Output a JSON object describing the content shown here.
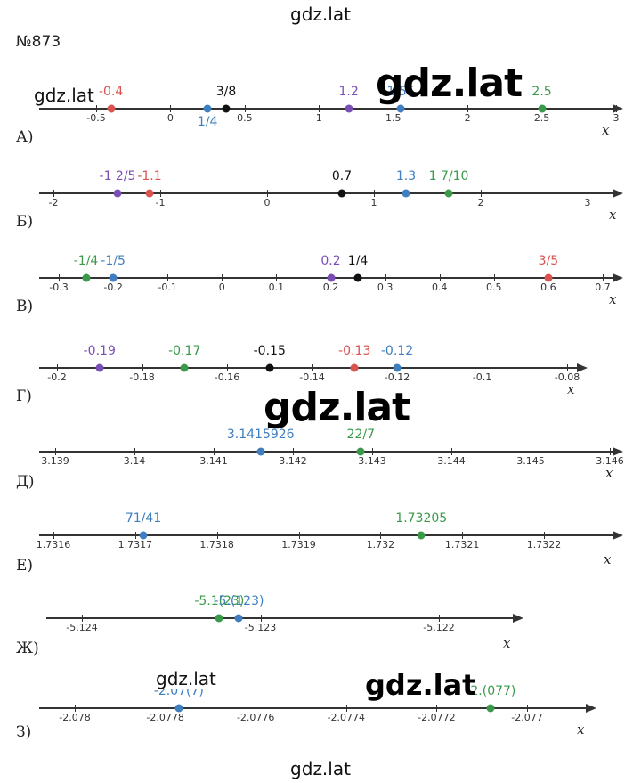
{
  "watermarks": {
    "top": "gdz.lat",
    "bottom": "gdz.lat",
    "big1": "gdz.lat",
    "big2": "gdz.lat",
    "big3": "gdz.lat",
    "small1": "gdz.lat",
    "small2": "gdz.lat"
  },
  "problem_number": "№873",
  "x_axis_symbol": "x",
  "colors": {
    "red": "#d9534f",
    "blue": "#3f7fbf",
    "green": "#3a9a4a",
    "purple": "#7a4fb5",
    "black": "#111111"
  },
  "rows": [
    {
      "label": "А)",
      "min": -0.6,
      "max": 3.0,
      "ticks": [
        "-0.5",
        "0",
        "0.5",
        "1",
        "1.5",
        "2",
        "2.5",
        "3"
      ],
      "tick_values": [
        -0.5,
        0,
        0.5,
        1,
        1.5,
        2,
        2.5,
        3
      ],
      "points": [
        {
          "label": "-0.4",
          "value": -0.4,
          "color": "red",
          "pos": "above"
        },
        {
          "label": "1/4",
          "value": 0.25,
          "color": "blue",
          "pos": "below"
        },
        {
          "label": "3/8",
          "value": 0.375,
          "color": "black",
          "pos": "above"
        },
        {
          "label": "1.2",
          "value": 1.2,
          "color": "purple",
          "pos": "above"
        },
        {
          "label": "1.55",
          "value": 1.55,
          "color": "blue",
          "pos": "above"
        },
        {
          "label": "2.5",
          "value": 2.5,
          "color": "green",
          "pos": "above"
        }
      ]
    },
    {
      "label": "Б)",
      "min": -2.1,
      "max": 3.2,
      "ticks": [
        "-2",
        "-1",
        "0",
        "1",
        "2",
        "3"
      ],
      "tick_values": [
        -2,
        -1,
        0,
        1,
        2,
        3
      ],
      "points": [
        {
          "label": "-1 2/5",
          "value": -1.4,
          "color": "purple",
          "pos": "above"
        },
        {
          "label": "-1.1",
          "value": -1.1,
          "color": "red",
          "pos": "above"
        },
        {
          "label": "0.7",
          "value": 0.7,
          "color": "black",
          "pos": "above"
        },
        {
          "label": "1.3",
          "value": 1.3,
          "color": "blue",
          "pos": "above"
        },
        {
          "label": "1 7/10",
          "value": 1.7,
          "color": "green",
          "pos": "above"
        }
      ]
    },
    {
      "label": "В)",
      "min": -0.33,
      "max": 0.73,
      "ticks": [
        "-0.3",
        "-0.2",
        "-0.1",
        "0",
        "0.1",
        "0.2",
        "0.3",
        "0.4",
        "0.5",
        "0.6",
        "0.7"
      ],
      "tick_values": [
        -0.3,
        -0.2,
        -0.1,
        0,
        0.1,
        0.2,
        0.3,
        0.4,
        0.5,
        0.6,
        0.7
      ],
      "points": [
        {
          "label": "-1/4",
          "value": -0.25,
          "color": "green",
          "pos": "above"
        },
        {
          "label": "-1/5",
          "value": -0.2,
          "color": "blue",
          "pos": "above"
        },
        {
          "label": "0.2",
          "value": 0.2,
          "color": "purple",
          "pos": "above"
        },
        {
          "label": "1/4",
          "value": 0.25,
          "color": "black",
          "pos": "above"
        },
        {
          "label": "3/5",
          "value": 0.6,
          "color": "red",
          "pos": "above"
        }
      ]
    },
    {
      "label": "Г)",
      "min": -0.204,
      "max": -0.078,
      "ticks": [
        "-0.2",
        "-0.18",
        "-0.16",
        "-0.14",
        "-0.12",
        "-0.1",
        "-0.08"
      ],
      "tick_values": [
        -0.2,
        -0.18,
        -0.16,
        -0.14,
        -0.12,
        -0.1,
        -0.08
      ],
      "points": [
        {
          "label": "-0.19",
          "value": -0.19,
          "color": "purple",
          "pos": "above"
        },
        {
          "label": "-0.17",
          "value": -0.17,
          "color": "green",
          "pos": "above"
        },
        {
          "label": "-0.15",
          "value": -0.15,
          "color": "black",
          "pos": "above"
        },
        {
          "label": "-0.13",
          "value": -0.13,
          "color": "red",
          "pos": "above"
        },
        {
          "label": "-0.12",
          "value": -0.12,
          "color": "blue",
          "pos": "above"
        }
      ]
    },
    {
      "label": "Д)",
      "min": 3.1388,
      "max": 3.1462,
      "ticks": [
        "3.139",
        "3.14",
        "3.141",
        "3.142",
        "3.143",
        "3.144",
        "3.145",
        "3.146"
      ],
      "tick_values": [
        3.139,
        3.14,
        3.141,
        3.142,
        3.143,
        3.144,
        3.145,
        3.146
      ],
      "points": [
        {
          "label": "3.1415926",
          "value": 3.1415926,
          "color": "blue",
          "pos": "above"
        },
        {
          "label": "22/7",
          "value": 3.142857,
          "color": "green",
          "pos": "above"
        }
      ]
    },
    {
      "label": "Е)",
      "min": 1.73155,
      "max": 1.73228,
      "ticks": [
        "1.7316",
        "1.7317",
        "1.7318",
        "1.7319",
        "1.732",
        "1.7321",
        "1.7322"
      ],
      "tick_values": [
        1.7316,
        1.7317,
        1.7318,
        1.7319,
        1.732,
        1.7321,
        1.7322
      ],
      "points": [
        {
          "label": "71/41",
          "value": 1.73171,
          "color": "blue",
          "pos": "above"
        },
        {
          "label": "1.73205",
          "value": 1.73205,
          "color": "green",
          "pos": "above"
        }
      ]
    },
    {
      "label": "Ж)",
      "min": -5.1245,
      "max": -5.1215,
      "ticks": [
        "-5.124",
        "-5.123",
        "-5.122"
      ],
      "tick_values": [
        -5.124,
        -5.123,
        -5.122
      ],
      "points": [
        {
          "label": "-5.1(23)",
          "value": -5.12323,
          "color": "green",
          "pos": "above"
        },
        {
          "label": "-5.(123)",
          "value": -5.12312,
          "color": "blue",
          "pos": "above"
        }
      ]
    },
    {
      "label": "З)",
      "min": -2.07808,
      "max": -2.07688,
      "ticks": [
        "-2.078",
        "-2.0778",
        "-2.0776",
        "-2.0774",
        "-2.0772",
        "-2.077"
      ],
      "tick_values": [
        -2.078,
        -2.0778,
        -2.0776,
        -2.0774,
        -2.0772,
        -2.077
      ],
      "points": [
        {
          "label": "-2.07(7)",
          "value": -2.07777,
          "color": "blue",
          "pos": "above"
        },
        {
          "label": "-2.(077)",
          "value": -2.07708,
          "color": "green",
          "pos": "above"
        }
      ]
    }
  ]
}
